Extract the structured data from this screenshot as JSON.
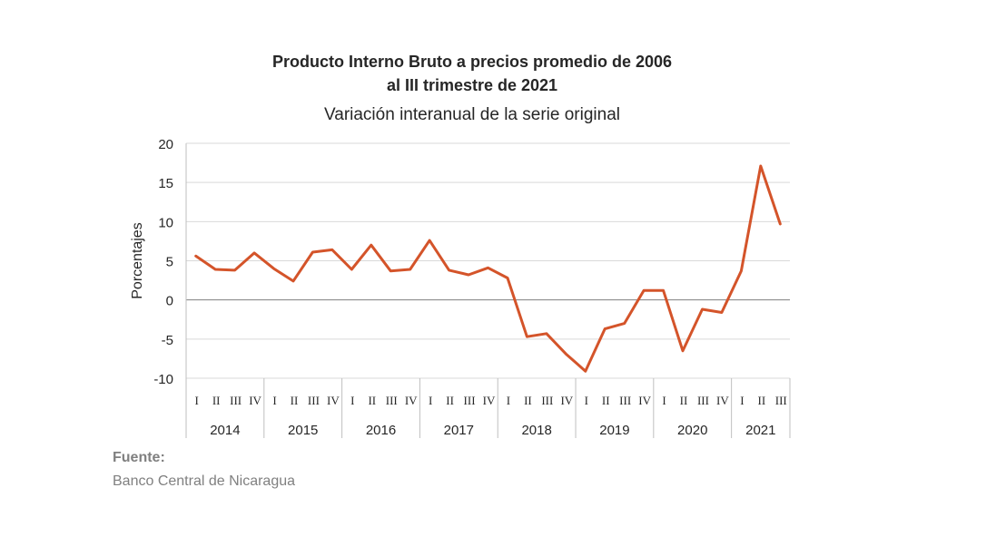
{
  "chart_data": {
    "type": "line",
    "title": "Producto Interno Bruto a precios promedio de 2006",
    "title_line2": "al III trimestre de 2021",
    "subtitle": "Variación interanual de la serie original",
    "ylabel": "Porcentajes",
    "xlabel": "",
    "ylim": [
      -10,
      20
    ],
    "yticks": [
      -10,
      -5,
      0,
      5,
      10,
      15,
      20
    ],
    "grid": true,
    "legend": "none",
    "line_color": "#D4542A",
    "years": [
      "2014",
      "2015",
      "2016",
      "2017",
      "2018",
      "2019",
      "2020",
      "2021"
    ],
    "quarters_per_year": [
      [
        "I",
        "II",
        "III",
        "IV"
      ],
      [
        "I",
        "II",
        "III",
        "IV"
      ],
      [
        "I",
        "II",
        "III",
        "IV"
      ],
      [
        "I",
        "II",
        "III",
        "IV"
      ],
      [
        "I",
        "II",
        "III",
        "IV"
      ],
      [
        "I",
        "II",
        "III",
        "IV"
      ],
      [
        "I",
        "II",
        "III",
        "IV"
      ],
      [
        "I",
        "II",
        "III"
      ]
    ],
    "series": [
      {
        "values": [
          5.6,
          3.9,
          3.8,
          6.0,
          4.0,
          2.4,
          6.1,
          6.4,
          3.9,
          7.0,
          3.7,
          3.9,
          7.6,
          3.8,
          3.2,
          4.1,
          2.8,
          -4.7,
          -4.3,
          -6.9,
          -9.1,
          -3.7,
          -3.0,
          1.2,
          1.2,
          -6.5,
          -1.2,
          -1.6,
          3.7,
          17.1,
          9.7
        ]
      }
    ]
  },
  "source": {
    "label": "Fuente:",
    "text": "Banco Central de Nicaragua"
  }
}
